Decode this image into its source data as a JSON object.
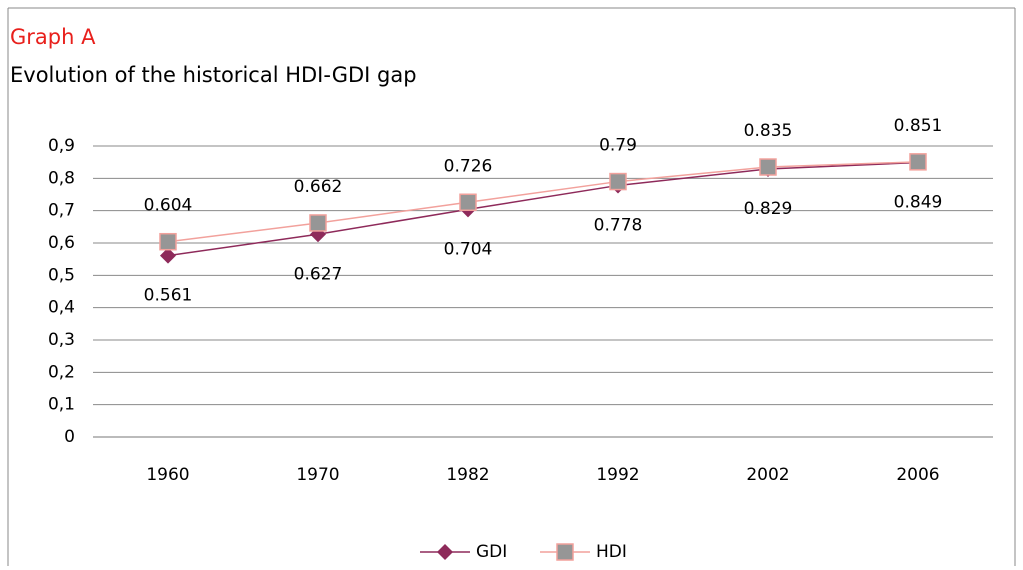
{
  "chart_data": {
    "type": "line",
    "title": "Graph A",
    "subtitle": "Evolution of the historical HDI-GDI gap",
    "categories": [
      "1960",
      "1970",
      "1982",
      "1992",
      "2002",
      "2006"
    ],
    "series": [
      {
        "name": "GDI",
        "color": "#8e2a5a",
        "marker": "diamond",
        "values": [
          0.561,
          0.627,
          0.704,
          0.778,
          0.829,
          0.849
        ]
      },
      {
        "name": "HDI",
        "color": "#f2a19c",
        "marker": "square",
        "marker_color": "#969696",
        "values": [
          0.604,
          0.662,
          0.726,
          0.79,
          0.835,
          0.851
        ]
      }
    ],
    "ylim": [
      0,
      0.9
    ],
    "yticks": [
      0,
      {
        "value": 0.1,
        "label": "0,1"
      },
      {
        "value": 0.2,
        "label": "0,2"
      },
      {
        "value": 0.3,
        "label": "0,3"
      },
      {
        "value": 0.4,
        "label": "0,4"
      },
      {
        "value": 0.5,
        "label": "0,5"
      },
      {
        "value": 0.6,
        "label": "0,6"
      },
      {
        "value": 0.7,
        "label": "0,7"
      },
      {
        "value": 0.8,
        "label": "0,8"
      },
      {
        "value": 0.9,
        "label": "0,9"
      }
    ],
    "grid": true,
    "legend": "bottom"
  }
}
